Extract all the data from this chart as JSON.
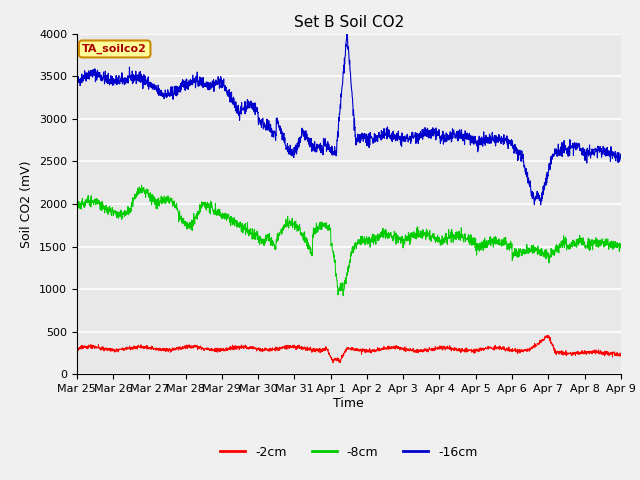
{
  "title": "Set B Soil CO2",
  "xlabel": "Time",
  "ylabel": "Soil CO2 (mV)",
  "legend_label": "TA_soilco2",
  "ylim": [
    0,
    4000
  ],
  "yticks": [
    0,
    500,
    1000,
    1500,
    2000,
    2500,
    3000,
    3500,
    4000
  ],
  "xtick_labels": [
    "Mar 25",
    "Mar 26",
    "Mar 27",
    "Mar 28",
    "Mar 29",
    "Mar 30",
    "Mar 31",
    "Apr 1",
    "Apr 2",
    "Apr 3",
    "Apr 4",
    "Apr 5",
    "Apr 6",
    "Apr 7",
    "Apr 8",
    "Apr 9"
  ],
  "series": {
    "red": {
      "label": "-2cm",
      "color": "#ff0000"
    },
    "green": {
      "label": "-8cm",
      "color": "#00cc00"
    },
    "blue": {
      "label": "-16cm",
      "color": "#0000cc"
    }
  },
  "background_color": "#e8e8e8",
  "grid_color": "#ffffff",
  "title_fontsize": 11,
  "axis_label_fontsize": 9,
  "tick_fontsize": 8,
  "legend_box_color": "#ffff99",
  "legend_box_edge": "#cc8800",
  "fig_facecolor": "#f0f0f0"
}
